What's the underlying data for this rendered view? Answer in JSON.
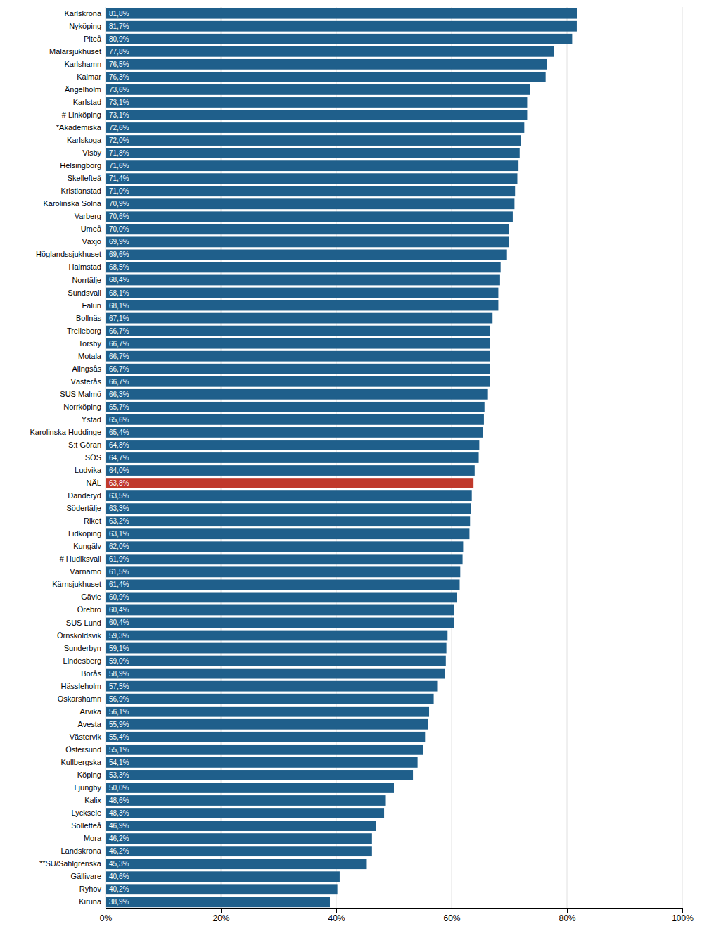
{
  "chart_data": {
    "type": "bar",
    "orientation": "horizontal",
    "categories": [
      "Karlskrona",
      "Nyköping",
      "Piteå",
      "Mälarsjukhuset",
      "Karlshamn",
      "Kalmar",
      "Ängelholm",
      "Karlstad",
      "# Linköping",
      "*Akademiska",
      "Karlskoga",
      "Visby",
      "Helsingborg",
      "Skellefteå",
      "Kristianstad",
      "Karolinska Solna",
      "Varberg",
      "Umeå",
      "Växjö",
      "Höglandssjukhuset",
      "Halmstad",
      "Norrtälje",
      "Sundsvall",
      "Falun",
      "Bollnäs",
      "Trelleborg",
      "Torsby",
      "Motala",
      "Alingsås",
      "Västerås",
      "SUS Malmö",
      "Norrköping",
      "Ystad",
      "Karolinska Huddinge",
      "S:t Göran",
      "SÖS",
      "Ludvika",
      "NÄL",
      "Danderyd",
      "Södertälje",
      "Riket",
      "Lidköping",
      "Kungälv",
      "# Hudiksvall",
      "Värnamo",
      "Kärnsjukhuset",
      "Gävle",
      "Örebro",
      "SUS Lund",
      "Örnsköldsvik",
      "Sunderbyn",
      "Lindesberg",
      "Borås",
      "Hässleholm",
      "Oskarshamn",
      "Arvika",
      "Avesta",
      "Västervik",
      "Östersund",
      "Kullbergska",
      "Köping",
      "Ljungby",
      "Kalix",
      "Lycksele",
      "Sollefteå",
      "Mora",
      "Landskrona",
      "**SU/Sahlgrenska",
      "Gällivare",
      "Ryhov",
      "Kiruna"
    ],
    "values": [
      81.8,
      81.7,
      80.9,
      77.8,
      76.5,
      76.3,
      73.6,
      73.1,
      73.1,
      72.6,
      72.0,
      71.8,
      71.6,
      71.4,
      71.0,
      70.9,
      70.6,
      70.0,
      69.9,
      69.6,
      68.5,
      68.4,
      68.1,
      68.1,
      67.1,
      66.7,
      66.7,
      66.7,
      66.7,
      66.7,
      66.3,
      65.7,
      65.6,
      65.4,
      64.8,
      64.7,
      64.0,
      63.8,
      63.5,
      63.3,
      63.2,
      63.1,
      62.0,
      61.9,
      61.5,
      61.4,
      60.9,
      60.4,
      60.4,
      59.3,
      59.1,
      59.0,
      58.9,
      57.5,
      56.9,
      56.1,
      55.9,
      55.4,
      55.1,
      54.1,
      53.3,
      50.0,
      48.6,
      48.3,
      46.9,
      46.2,
      46.2,
      45.3,
      40.6,
      40.2,
      38.9
    ],
    "value_labels": [
      "81,8%",
      "81,7%",
      "80,9%",
      "77,8%",
      "76,5%",
      "76,3%",
      "73,6%",
      "73,1%",
      "73,1%",
      "72,6%",
      "72,0%",
      "71,8%",
      "71,6%",
      "71,4%",
      "71,0%",
      "70,9%",
      "70,6%",
      "70,0%",
      "69,9%",
      "69,6%",
      "68,5%",
      "68,4%",
      "68,1%",
      "68,1%",
      "67,1%",
      "66,7%",
      "66,7%",
      "66,7%",
      "66,7%",
      "66,7%",
      "66,3%",
      "65,7%",
      "65,6%",
      "65,4%",
      "64,8%",
      "64,7%",
      "64,0%",
      "63,8%",
      "63,5%",
      "63,3%",
      "63,2%",
      "63,1%",
      "62,0%",
      "61,9%",
      "61,5%",
      "61,4%",
      "60,9%",
      "60,4%",
      "60,4%",
      "59,3%",
      "59,1%",
      "59,0%",
      "58,9%",
      "57,5%",
      "56,9%",
      "56,1%",
      "55,9%",
      "55,4%",
      "55,1%",
      "54,1%",
      "53,3%",
      "50,0%",
      "48,6%",
      "48,3%",
      "46,9%",
      "46,2%",
      "46,2%",
      "45,3%",
      "40,6%",
      "40,2%",
      "38,9%"
    ],
    "colors": [
      "#1f5f8b",
      "#1f5f8b",
      "#1f5f8b",
      "#1f5f8b",
      "#1f5f8b",
      "#1f5f8b",
      "#1f5f8b",
      "#1f5f8b",
      "#1f5f8b",
      "#1f5f8b",
      "#1f5f8b",
      "#1f5f8b",
      "#1f5f8b",
      "#1f5f8b",
      "#1f5f8b",
      "#1f5f8b",
      "#1f5f8b",
      "#1f5f8b",
      "#1f5f8b",
      "#1f5f8b",
      "#1f5f8b",
      "#1f5f8b",
      "#1f5f8b",
      "#1f5f8b",
      "#1f5f8b",
      "#1f5f8b",
      "#1f5f8b",
      "#1f5f8b",
      "#1f5f8b",
      "#1f5f8b",
      "#1f5f8b",
      "#1f5f8b",
      "#1f5f8b",
      "#1f5f8b",
      "#1f5f8b",
      "#1f5f8b",
      "#1f5f8b",
      "#c0392b",
      "#1f5f8b",
      "#1f5f8b",
      "#1f5f8b",
      "#1f5f8b",
      "#1f5f8b",
      "#1f5f8b",
      "#1f5f8b",
      "#1f5f8b",
      "#1f5f8b",
      "#1f5f8b",
      "#1f5f8b",
      "#1f5f8b",
      "#1f5f8b",
      "#1f5f8b",
      "#1f5f8b",
      "#1f5f8b",
      "#1f5f8b",
      "#1f5f8b",
      "#1f5f8b",
      "#1f5f8b",
      "#1f5f8b",
      "#1f5f8b",
      "#1f5f8b",
      "#1f5f8b",
      "#1f5f8b",
      "#1f5f8b",
      "#1f5f8b",
      "#1f5f8b",
      "#1f5f8b",
      "#1f5f8b",
      "#1f5f8b",
      "#1f5f8b",
      "#1f5f8b"
    ],
    "xlim": [
      0,
      100
    ],
    "xticks": [
      {
        "value": 0,
        "label": "0%"
      },
      {
        "value": 20,
        "label": "20%"
      },
      {
        "value": 40,
        "label": "40%"
      },
      {
        "value": 60,
        "label": "60%"
      },
      {
        "value": 80,
        "label": "80%"
      },
      {
        "value": 100,
        "label": "100%"
      }
    ],
    "grid": true,
    "data_labels": true
  }
}
